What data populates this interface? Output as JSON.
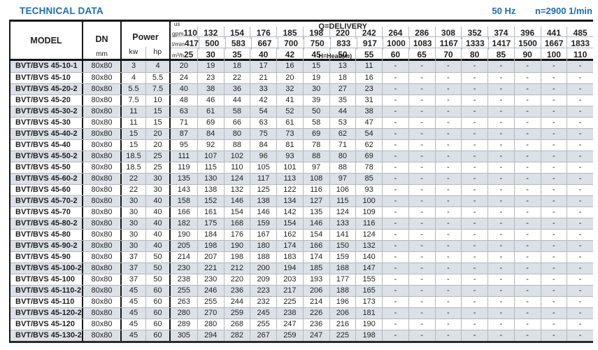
{
  "header": {
    "title": "TECHNICAL DATA",
    "frequency": "50 Hz",
    "speed": "n=2900 1/min"
  },
  "colors": {
    "accent_blue": "#1b6db3",
    "row_stripe": "#dbe1e7"
  },
  "table": {
    "headers": {
      "model": "MODEL",
      "dn": "DN",
      "dn_unit": "mm",
      "power": "Power",
      "power_unit_kw": "kw",
      "power_unit_hp": "hp"
    },
    "delivery": {
      "label": "Q=DELIVERY",
      "head_prefix": "H=Head(",
      "head_m": "m",
      "head_suffix": ")",
      "unit_rows": [
        {
          "unit_top": "us",
          "unit": "gpm",
          "values": [
            "110",
            "132",
            "154",
            "176",
            "185",
            "198",
            "220",
            "242",
            "264",
            "286",
            "308",
            "352",
            "374",
            "396",
            "441",
            "485"
          ]
        },
        {
          "unit": "l/min",
          "values": [
            "417",
            "500",
            "583",
            "667",
            "700",
            "750",
            "833",
            "917",
            "1000",
            "1083",
            "1167",
            "1333",
            "1417",
            "1500",
            "1667",
            "1833"
          ]
        },
        {
          "unit": "m³/h",
          "values": [
            "25",
            "30",
            "35",
            "40",
            "42",
            "45",
            "50",
            "55",
            "60",
            "65",
            "70",
            "80",
            "85",
            "90",
            "100",
            "110"
          ]
        }
      ]
    },
    "rows": [
      {
        "model": "BVT/BVS 45-10-1",
        "dn": "80x80",
        "kw": "3",
        "hp": "4",
        "heads": [
          "20",
          "19",
          "18",
          "17",
          "16",
          "15",
          "13",
          "11",
          "-",
          "-",
          "-",
          "-",
          "-",
          "-",
          "-",
          "-"
        ]
      },
      {
        "model": "BVT/BVS 45-10",
        "dn": "80x80",
        "kw": "4",
        "hp": "5.5",
        "heads": [
          "24",
          "23",
          "22",
          "21",
          "20",
          "19",
          "18",
          "16",
          "-",
          "-",
          "-",
          "-",
          "-",
          "-",
          "-",
          "-"
        ]
      },
      {
        "model": "BVT/BVS 45-20-2",
        "dn": "80x80",
        "kw": "5.5",
        "hp": "7.5",
        "heads": [
          "40",
          "38",
          "36",
          "33",
          "32",
          "30",
          "27",
          "23",
          "-",
          "-",
          "-",
          "-",
          "-",
          "-",
          "-",
          "-"
        ]
      },
      {
        "model": "BVT/BVS 45-20",
        "dn": "80x80",
        "kw": "7.5",
        "hp": "10",
        "heads": [
          "48",
          "46",
          "44",
          "42",
          "41",
          "39",
          "35",
          "31",
          "-",
          "-",
          "-",
          "-",
          "-",
          "-",
          "-",
          "-"
        ]
      },
      {
        "model": "BVT/BVS 45-30-2",
        "dn": "80x80",
        "kw": "11",
        "hp": "15",
        "heads": [
          "63",
          "61",
          "58",
          "54",
          "52",
          "50",
          "44",
          "38",
          "-",
          "-",
          "-",
          "-",
          "-",
          "-",
          "-",
          "-"
        ]
      },
      {
        "model": "BVT/BVS 45-30",
        "dn": "80x80",
        "kw": "11",
        "hp": "15",
        "heads": [
          "71",
          "69",
          "66",
          "63",
          "61",
          "58",
          "53",
          "47",
          "-",
          "-",
          "-",
          "-",
          "-",
          "-",
          "-",
          "-"
        ]
      },
      {
        "model": "BVT/BVS 45-40-2",
        "dn": "80x80",
        "kw": "15",
        "hp": "20",
        "heads": [
          "87",
          "84",
          "80",
          "75",
          "73",
          "69",
          "62",
          "54",
          "-",
          "-",
          "-",
          "-",
          "-",
          "-",
          "-",
          "-"
        ]
      },
      {
        "model": "BVT/BVS 45-40",
        "dn": "80x80",
        "kw": "15",
        "hp": "20",
        "heads": [
          "95",
          "92",
          "88",
          "84",
          "81",
          "78",
          "71",
          "62",
          "-",
          "-",
          "-",
          "-",
          "-",
          "-",
          "-",
          "-"
        ]
      },
      {
        "model": "BVT/BVS 45-50-2",
        "dn": "80x80",
        "kw": "18.5",
        "hp": "25",
        "heads": [
          "111",
          "107",
          "102",
          "96",
          "93",
          "88",
          "80",
          "69",
          "-",
          "-",
          "-",
          "-",
          "-",
          "-",
          "-",
          "-"
        ]
      },
      {
        "model": "BVT/BVS 45-50",
        "dn": "80x80",
        "kw": "18.5",
        "hp": "25",
        "heads": [
          "119",
          "115",
          "110",
          "105",
          "101",
          "97",
          "88",
          "78",
          "-",
          "-",
          "-",
          "-",
          "-",
          "-",
          "-",
          "-"
        ]
      },
      {
        "model": "BVT/BVS 45-60-2",
        "dn": "80x80",
        "kw": "22",
        "hp": "30",
        "heads": [
          "135",
          "130",
          "124",
          "117",
          "113",
          "108",
          "97",
          "85",
          "-",
          "-",
          "-",
          "-",
          "-",
          "-",
          "-",
          "-"
        ]
      },
      {
        "model": "BVT/BVS 45-60",
        "dn": "80x80",
        "kw": "22",
        "hp": "30",
        "heads": [
          "143",
          "138",
          "132",
          "125",
          "122",
          "116",
          "106",
          "93",
          "-",
          "-",
          "-",
          "-",
          "-",
          "-",
          "-",
          "-"
        ]
      },
      {
        "model": "BVT/BVS 45-70-2",
        "dn": "80x80",
        "kw": "30",
        "hp": "40",
        "heads": [
          "158",
          "152",
          "146",
          "138",
          "134",
          "127",
          "115",
          "100",
          "-",
          "-",
          "-",
          "-",
          "-",
          "-",
          "-",
          "-"
        ]
      },
      {
        "model": "BVT/BVS 45-70",
        "dn": "80x80",
        "kw": "30",
        "hp": "40",
        "heads": [
          "166",
          "161",
          "154",
          "146",
          "142",
          "135",
          "124",
          "109",
          "-",
          "-",
          "-",
          "-",
          "-",
          "-",
          "-",
          "-"
        ]
      },
      {
        "model": "BVT/BVS 45-80-2",
        "dn": "80x80",
        "kw": "30",
        "hp": "40",
        "heads": [
          "182",
          "175",
          "168",
          "159",
          "154",
          "146",
          "133",
          "116",
          "-",
          "-",
          "-",
          "-",
          "-",
          "-",
          "-",
          "-"
        ]
      },
      {
        "model": "BVT/BVS 45-80",
        "dn": "80x80",
        "kw": "30",
        "hp": "40",
        "heads": [
          "190",
          "184",
          "176",
          "167",
          "162",
          "154",
          "141",
          "124",
          "-",
          "-",
          "-",
          "-",
          "-",
          "-",
          "-",
          "-"
        ]
      },
      {
        "model": "BVT/BVS 45-90-2",
        "dn": "80x80",
        "kw": "30",
        "hp": "40",
        "heads": [
          "205",
          "198",
          "190",
          "180",
          "174",
          "166",
          "150",
          "132",
          "-",
          "-",
          "-",
          "-",
          "-",
          "-",
          "-",
          "-"
        ]
      },
      {
        "model": "BVT/BVS 45-90",
        "dn": "80x80",
        "kw": "37",
        "hp": "50",
        "heads": [
          "214",
          "207",
          "198",
          "188",
          "183",
          "174",
          "159",
          "140",
          "-",
          "-",
          "-",
          "-",
          "-",
          "-",
          "-",
          "-"
        ]
      },
      {
        "model": "BVT/BVS 45-100-2",
        "dn": "80x80",
        "kw": "37",
        "hp": "50",
        "heads": [
          "230",
          "221",
          "212",
          "200",
          "194",
          "185",
          "168",
          "147",
          "-",
          "-",
          "-",
          "-",
          "-",
          "-",
          "-",
          "-"
        ]
      },
      {
        "model": "BVT/BVS 45-100",
        "dn": "80x80",
        "kw": "37",
        "hp": "50",
        "heads": [
          "238",
          "230",
          "220",
          "209",
          "203",
          "193",
          "177",
          "155",
          "-",
          "-",
          "-",
          "-",
          "-",
          "-",
          "-",
          "-"
        ]
      },
      {
        "model": "BVT/BVS 45-110-2",
        "dn": "80x80",
        "kw": "45",
        "hp": "60",
        "heads": [
          "255",
          "246",
          "236",
          "223",
          "217",
          "206",
          "188",
          "165",
          "-",
          "-",
          "-",
          "-",
          "-",
          "-",
          "-",
          "-"
        ]
      },
      {
        "model": "BVT/BVS 45-110",
        "dn": "80x80",
        "kw": "45",
        "hp": "60",
        "heads": [
          "263",
          "255",
          "244",
          "232",
          "225",
          "214",
          "196",
          "173",
          "-",
          "-",
          "-",
          "-",
          "-",
          "-",
          "-",
          "-"
        ]
      },
      {
        "model": "BVT/BVS 45-120-2",
        "dn": "80x80",
        "kw": "45",
        "hp": "60",
        "heads": [
          "280",
          "270",
          "259",
          "245",
          "238",
          "226",
          "206",
          "181",
          "-",
          "-",
          "-",
          "-",
          "-",
          "-",
          "-",
          "-"
        ]
      },
      {
        "model": "BVT/BVS 45-120",
        "dn": "80x80",
        "kw": "45",
        "hp": "60",
        "heads": [
          "289",
          "280",
          "268",
          "255",
          "247",
          "236",
          "216",
          "190",
          "-",
          "-",
          "-",
          "-",
          "-",
          "-",
          "-",
          "-"
        ]
      },
      {
        "model": "BVT/BVS 45-130-2",
        "dn": "80x80",
        "kw": "45",
        "hp": "60",
        "heads": [
          "305",
          "294",
          "282",
          "267",
          "259",
          "247",
          "225",
          "198",
          "-",
          "-",
          "-",
          "-",
          "-",
          "-",
          "-",
          "-"
        ]
      }
    ]
  }
}
